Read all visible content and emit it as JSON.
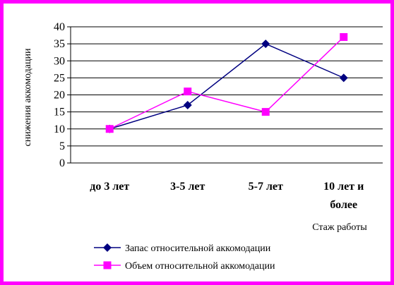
{
  "chart_data": {
    "type": "line",
    "categories": [
      "до 3 лет",
      "3-5 лет",
      "5-7 лет",
      "10 лет и более"
    ],
    "category_lines": [
      [
        "до 3 лет"
      ],
      [
        "3-5 лет"
      ],
      [
        "5-7 лет"
      ],
      [
        "10 лет и",
        "более"
      ]
    ],
    "ylim": [
      0,
      40
    ],
    "y_ticks": [
      0,
      5,
      10,
      15,
      20,
      25,
      30,
      35,
      40
    ],
    "ylabel": "снижения аккомодации",
    "xlabel": "Стаж работы",
    "grid": true,
    "legend_position": "bottom-left",
    "series": [
      {
        "name": "Запас относительной аккомодации",
        "values": [
          10,
          17,
          35,
          25
        ],
        "color": "#000080",
        "marker": "diamond"
      },
      {
        "name": "Объем относительной аккомодации",
        "values": [
          10,
          21,
          15,
          37
        ],
        "color": "#ff00ff",
        "marker": "square"
      }
    ]
  },
  "frame_color": "#ff00ff"
}
